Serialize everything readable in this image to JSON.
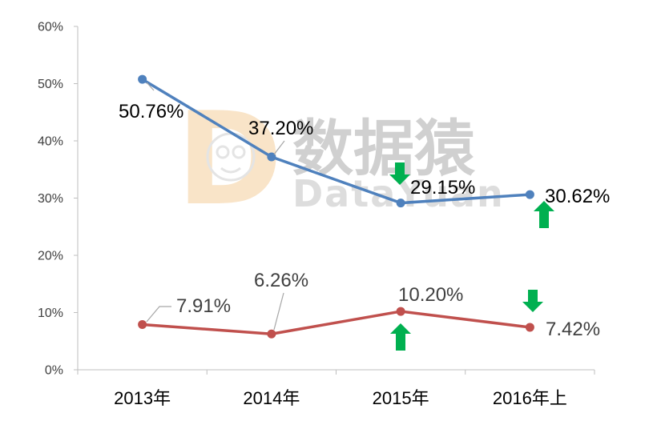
{
  "chart_data": {
    "type": "line",
    "title": "",
    "xlabel": "",
    "ylabel": "",
    "categories": [
      "2013年",
      "2014年",
      "2015年",
      "2016年上"
    ],
    "ylim": [
      0,
      60
    ],
    "y_ticks": [
      {
        "value": 0,
        "label": "0%"
      },
      {
        "value": 10,
        "label": "10%"
      },
      {
        "value": 20,
        "label": "20%"
      },
      {
        "value": 30,
        "label": "30%"
      },
      {
        "value": 40,
        "label": "40%"
      },
      {
        "value": 50,
        "label": "50%"
      },
      {
        "value": 60,
        "label": "60%"
      }
    ],
    "grid": false,
    "legend": "none",
    "series": [
      {
        "values": [
          50.76,
          37.2,
          29.15,
          30.62
        ],
        "data_labels": [
          "50.76%",
          "37.20%",
          "29.15%",
          "30.62%"
        ],
        "color": "#4F81BD",
        "label_color": "#000000"
      },
      {
        "values": [
          7.91,
          6.26,
          10.2,
          7.42
        ],
        "data_labels": [
          "7.91%",
          "6.26%",
          "10.20%",
          "7.42%"
        ],
        "color": "#C0504D",
        "label_color": "#404040"
      }
    ],
    "change_markers": [
      {
        "icon": "arrow-down-icon",
        "series": 0,
        "index": 2,
        "color": "#00B050"
      },
      {
        "icon": "arrow-up-icon",
        "series": 0,
        "index": 3,
        "color": "#00B050"
      },
      {
        "icon": "arrow-up-icon",
        "series": 1,
        "index": 2,
        "color": "#00B050"
      },
      {
        "icon": "arrow-down-icon",
        "series": 1,
        "index": 3,
        "color": "#00B050"
      }
    ]
  },
  "watermark": {
    "logo_letter": "D",
    "text": "数据猿",
    "subtext": "DataYuan"
  },
  "colors": {
    "axis": "#BFBFBF",
    "leader_line": "#A6A6A6",
    "watermark_logo": "#F9E4C8",
    "watermark_text": "#D0D0D0"
  }
}
